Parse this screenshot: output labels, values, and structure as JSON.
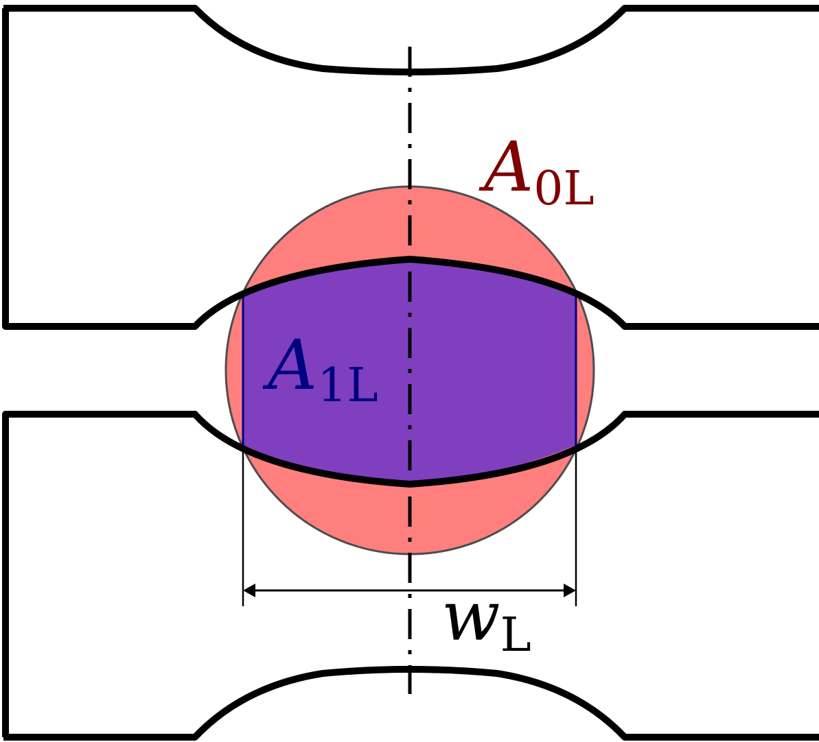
{
  "labels": {
    "a0": {
      "main": "A",
      "sub": "0L"
    },
    "a1": {
      "main": "A",
      "sub": "1L"
    },
    "w": {
      "main": "w",
      "sub": "L"
    }
  },
  "colors": {
    "outer_area": "#ff7f7f",
    "inner_area": "#7f3fbf",
    "a0_label": "#800000",
    "a1_label": "#000080",
    "outline": "#000000",
    "circle_stroke": "#4d4d4d",
    "background": "#ffffff"
  }
}
